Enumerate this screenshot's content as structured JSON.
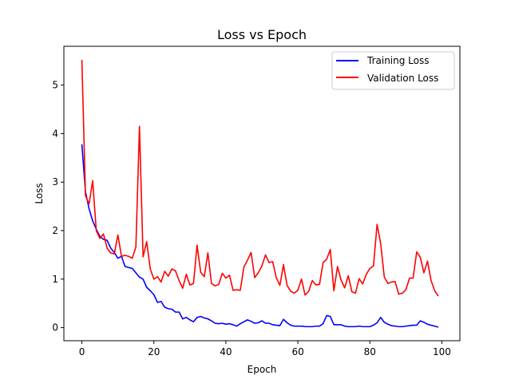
{
  "chart_data": {
    "type": "line",
    "title": "Loss vs Epoch",
    "xlabel": "Epoch",
    "ylabel": "Loss",
    "xlim": [
      -5,
      105
    ],
    "ylim": [
      -0.27,
      5.8
    ],
    "xticks": [
      0,
      20,
      40,
      60,
      80,
      100
    ],
    "yticks": [
      0,
      1,
      2,
      3,
      4,
      5
    ],
    "legend_position": "top-right",
    "x": [
      0,
      1,
      2,
      3,
      4,
      5,
      6,
      7,
      8,
      9,
      10,
      11,
      12,
      13,
      14,
      15,
      16,
      17,
      18,
      19,
      20,
      21,
      22,
      23,
      24,
      25,
      26,
      27,
      28,
      29,
      30,
      31,
      32,
      33,
      34,
      35,
      36,
      37,
      38,
      39,
      40,
      41,
      42,
      43,
      44,
      45,
      46,
      47,
      48,
      49,
      50,
      51,
      52,
      53,
      54,
      55,
      56,
      57,
      58,
      59,
      60,
      61,
      62,
      63,
      64,
      65,
      66,
      67,
      68,
      69,
      70,
      71,
      72,
      73,
      74,
      75,
      76,
      77,
      78,
      79,
      80,
      81,
      82,
      83,
      84,
      85,
      86,
      87,
      88,
      89,
      90,
      91,
      92,
      93,
      94,
      95,
      96,
      97,
      98,
      99
    ],
    "series": [
      {
        "name": "Training Loss",
        "color": "#0000ff",
        "values": [
          3.78,
          2.8,
          2.45,
          2.2,
          2.03,
          1.88,
          1.82,
          1.8,
          1.64,
          1.55,
          1.43,
          1.47,
          1.26,
          1.24,
          1.22,
          1.13,
          1.04,
          1.0,
          0.83,
          0.76,
          0.68,
          0.52,
          0.54,
          0.42,
          0.39,
          0.38,
          0.32,
          0.32,
          0.18,
          0.21,
          0.16,
          0.12,
          0.21,
          0.23,
          0.2,
          0.18,
          0.14,
          0.09,
          0.08,
          0.09,
          0.07,
          0.08,
          0.06,
          0.03,
          0.08,
          0.12,
          0.16,
          0.13,
          0.09,
          0.1,
          0.14,
          0.09,
          0.09,
          0.06,
          0.05,
          0.04,
          0.17,
          0.1,
          0.05,
          0.03,
          0.03,
          0.03,
          0.02,
          0.02,
          0.02,
          0.03,
          0.03,
          0.08,
          0.25,
          0.23,
          0.06,
          0.06,
          0.06,
          0.03,
          0.02,
          0.02,
          0.02,
          0.03,
          0.02,
          0.02,
          0.02,
          0.05,
          0.1,
          0.21,
          0.11,
          0.07,
          0.04,
          0.03,
          0.02,
          0.02,
          0.03,
          0.04,
          0.05,
          0.05,
          0.14,
          0.11,
          0.07,
          0.05,
          0.03,
          0.01
        ]
      },
      {
        "name": "Validation Loss",
        "color": "#ff0000",
        "values": [
          5.52,
          2.72,
          2.55,
          3.03,
          2.0,
          1.84,
          1.93,
          1.64,
          1.54,
          1.52,
          1.91,
          1.47,
          1.49,
          1.47,
          1.43,
          1.66,
          4.15,
          1.46,
          1.77,
          1.21,
          1.0,
          1.05,
          0.94,
          1.16,
          1.06,
          1.21,
          1.17,
          0.97,
          0.81,
          1.1,
          0.88,
          0.91,
          1.7,
          1.14,
          1.05,
          1.54,
          0.91,
          0.86,
          0.89,
          1.12,
          1.02,
          1.08,
          0.77,
          0.78,
          0.77,
          1.25,
          1.39,
          1.55,
          1.03,
          1.13,
          1.27,
          1.5,
          1.34,
          1.36,
          1.03,
          0.87,
          1.3,
          0.87,
          0.75,
          0.71,
          0.77,
          1.0,
          0.67,
          0.75,
          0.97,
          0.88,
          0.89,
          1.34,
          1.41,
          1.61,
          0.76,
          1.26,
          0.98,
          0.82,
          1.07,
          0.74,
          0.71,
          1.01,
          0.9,
          1.1,
          1.22,
          1.27,
          2.13,
          1.73,
          1.04,
          0.91,
          0.94,
          0.95,
          0.69,
          0.71,
          0.78,
          1.02,
          1.02,
          1.56,
          1.45,
          1.13,
          1.37,
          0.97,
          0.76,
          0.65
        ]
      }
    ]
  }
}
